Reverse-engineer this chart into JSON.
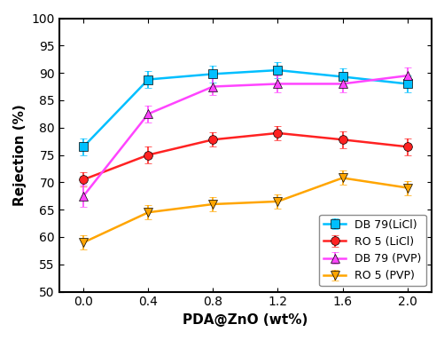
{
  "x": [
    0.0,
    0.4,
    0.8,
    1.2,
    1.6,
    2.0
  ],
  "series": [
    {
      "label": "DB 79(LiCl)",
      "color": "#00BFFF",
      "marker": "s",
      "marker_direction": "up",
      "y": [
        76.5,
        88.8,
        89.8,
        90.5,
        89.3,
        88.0
      ],
      "yerr": [
        1.5,
        1.5,
        1.5,
        1.5,
        1.5,
        1.5
      ]
    },
    {
      "label": "RO 5 (LiCl)",
      "color": "#FF2222",
      "marker": "o",
      "y": [
        70.5,
        75.0,
        77.8,
        79.0,
        77.8,
        76.5
      ],
      "yerr": [
        1.3,
        1.5,
        1.3,
        1.3,
        1.5,
        1.5
      ]
    },
    {
      "label": "DB 79 (PVP)",
      "color": "#FF44FF",
      "marker": "^",
      "y": [
        67.5,
        82.5,
        87.5,
        88.0,
        88.0,
        89.5
      ],
      "yerr": [
        2.0,
        1.5,
        1.5,
        1.5,
        1.5,
        1.5
      ]
    },
    {
      "label": "RO 5 (PVP)",
      "color": "#FFA500",
      "marker": "v",
      "y": [
        59.0,
        64.5,
        66.0,
        66.5,
        70.8,
        69.0
      ],
      "yerr": [
        1.3,
        1.3,
        1.3,
        1.3,
        1.3,
        1.3
      ]
    }
  ],
  "xlabel": "PDA@ZnO (wt%)",
  "ylabel": "Rejection (%)",
  "xlim": [
    -0.15,
    2.15
  ],
  "ylim": [
    50,
    100
  ],
  "yticks": [
    50,
    55,
    60,
    65,
    70,
    75,
    80,
    85,
    90,
    95,
    100
  ],
  "xticks": [
    0.0,
    0.4,
    0.8,
    1.2,
    1.6,
    2.0
  ],
  "legend_loc": "lower right",
  "linewidth": 1.8,
  "markersize": 7,
  "capsize": 3,
  "elinewidth": 1.2,
  "background_color": "#ffffff"
}
